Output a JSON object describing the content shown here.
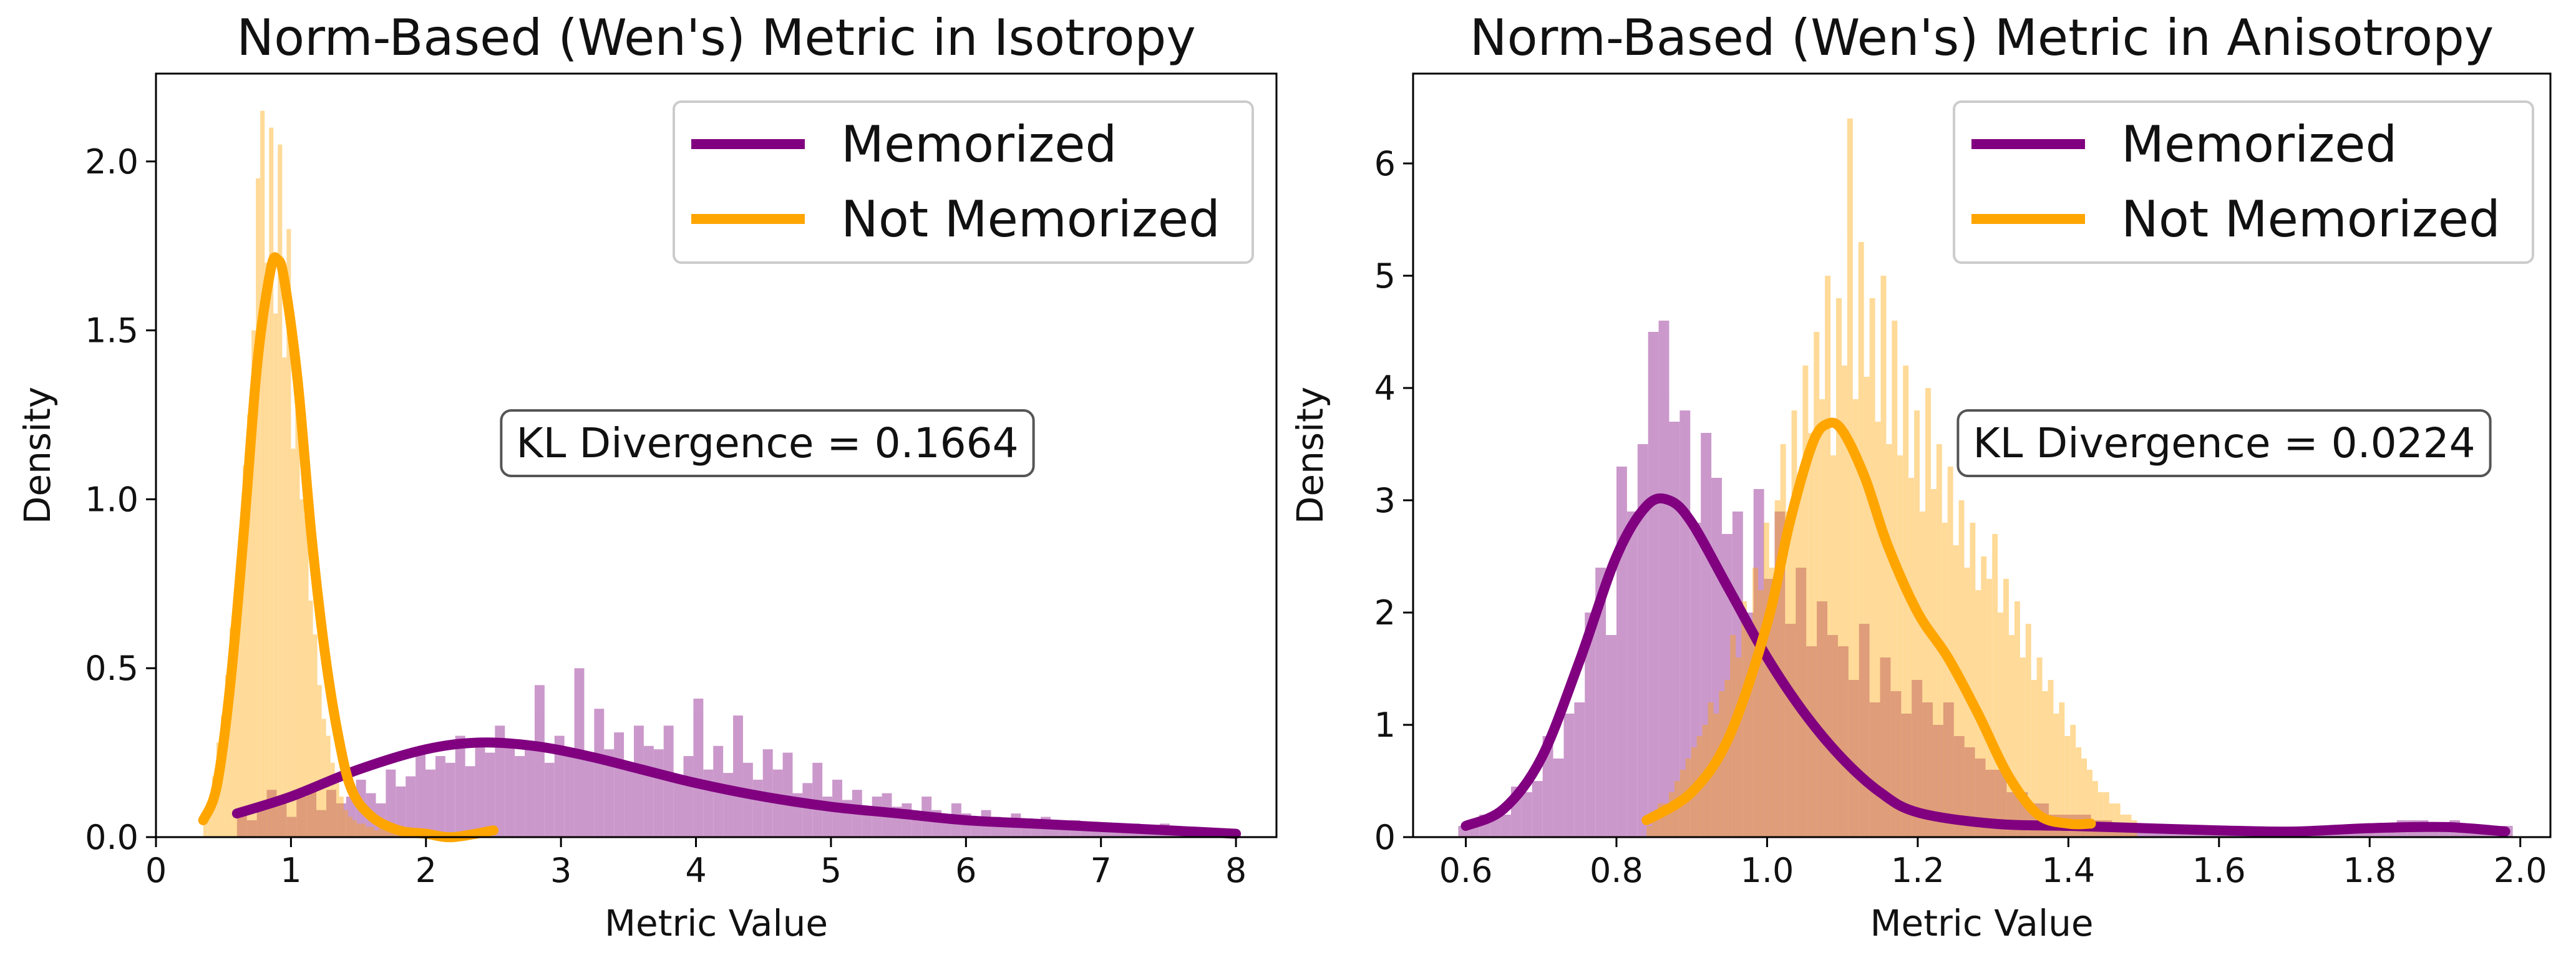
{
  "chart_data": [
    {
      "type": "histogram+kde",
      "title": "Norm-Based (Wen's) Metric in Isotropy",
      "xlabel": "Metric Value",
      "ylabel": "Density",
      "xlim": [
        0,
        8.3
      ],
      "ylim": [
        0,
        2.26
      ],
      "xticks": [
        0,
        1,
        2,
        3,
        4,
        5,
        6,
        7,
        8
      ],
      "xtick_labels": [
        "0",
        "1",
        "2",
        "3",
        "4",
        "5",
        "6",
        "7",
        "8"
      ],
      "yticks": [
        0.0,
        0.5,
        1.0,
        1.5,
        2.0
      ],
      "ytick_labels": [
        "0.0",
        "0.5",
        "1.0",
        "1.5",
        "2.0"
      ],
      "legend_position": "top-right",
      "annotation": "KL Divergence = 0.1664",
      "series": [
        {
          "name": "Memorized",
          "color": "#800080",
          "hist_start": 0.6,
          "bin_width": 0.0735,
          "hist": [
            0.07,
            0.05,
            0.08,
            0.14,
            0.1,
            0.06,
            0.12,
            0.15,
            0.08,
            0.14,
            0.1,
            0.12,
            0.17,
            0.13,
            0.1,
            0.2,
            0.15,
            0.18,
            0.26,
            0.2,
            0.24,
            0.22,
            0.3,
            0.21,
            0.27,
            0.25,
            0.33,
            0.29,
            0.24,
            0.27,
            0.45,
            0.22,
            0.3,
            0.25,
            0.5,
            0.23,
            0.38,
            0.26,
            0.31,
            0.2,
            0.33,
            0.27,
            0.26,
            0.33,
            0.18,
            0.24,
            0.41,
            0.2,
            0.27,
            0.19,
            0.36,
            0.22,
            0.17,
            0.26,
            0.2,
            0.25,
            0.13,
            0.16,
            0.22,
            0.12,
            0.17,
            0.11,
            0.14,
            0.08,
            0.12,
            0.13,
            0.09,
            0.1,
            0.07,
            0.12,
            0.08,
            0.06,
            0.1,
            0.07,
            0.06,
            0.08,
            0.06,
            0.05,
            0.07,
            0.04,
            0.05,
            0.06,
            0.04,
            0.03,
            0.05,
            0.04,
            0.03,
            0.04,
            0.03,
            0.03,
            0.04,
            0.02,
            0.03,
            0.04,
            0.02,
            0.02,
            0.03,
            0.02,
            0.02,
            0.02
          ],
          "kde_x": [
            0.6,
            1.0,
            1.5,
            2.0,
            2.4,
            2.8,
            3.2,
            3.6,
            4.0,
            4.5,
            5.0,
            5.5,
            6.0,
            6.5,
            7.0,
            7.5,
            8.0
          ],
          "kde_y": [
            0.07,
            0.12,
            0.2,
            0.26,
            0.28,
            0.27,
            0.24,
            0.2,
            0.16,
            0.12,
            0.09,
            0.07,
            0.05,
            0.04,
            0.03,
            0.02,
            0.01
          ]
        },
        {
          "name": "Not Memorized",
          "color": "#FFA500",
          "hist_start": 0.35,
          "bin_width": 0.0325,
          "hist": [
            0.05,
            0.1,
            0.18,
            0.28,
            0.36,
            0.48,
            0.62,
            0.7,
            0.78,
            1.1,
            1.25,
            1.5,
            1.95,
            2.15,
            1.7,
            2.1,
            1.55,
            2.05,
            1.42,
            1.8,
            1.15,
            1.35,
            1.0,
            0.95,
            0.7,
            0.6,
            0.45,
            0.35,
            0.3,
            0.22,
            0.16,
            0.12,
            0.08,
            0.06,
            0.05,
            0.04,
            0.04,
            0.03,
            0.03,
            0.02,
            0.03,
            0.02,
            0.02,
            0.02,
            0.02,
            0.01,
            0.02,
            0.01,
            0.02,
            0.01,
            0.01,
            0.01,
            0.01,
            0.01,
            0.01,
            0.01,
            0.01,
            0.01,
            0.01,
            0.01,
            0.01,
            0.01,
            0.01,
            0.01
          ],
          "kde_x": [
            0.35,
            0.45,
            0.55,
            0.65,
            0.75,
            0.85,
            0.9,
            0.95,
            1.05,
            1.15,
            1.25,
            1.35,
            1.45,
            1.6,
            1.8,
            2.0,
            2.2,
            2.5
          ],
          "kde_y": [
            0.05,
            0.15,
            0.45,
            0.9,
            1.4,
            1.68,
            1.71,
            1.65,
            1.35,
            0.9,
            0.55,
            0.3,
            0.14,
            0.06,
            0.02,
            0.01,
            0.0,
            0.02
          ]
        }
      ]
    },
    {
      "type": "histogram+kde",
      "title": "Norm-Based (Wen's) Metric in Anisotropy",
      "xlabel": "Metric Value",
      "ylabel": "Density",
      "xlim": [
        0.53,
        2.04
      ],
      "ylim": [
        0,
        6.8
      ],
      "xticks": [
        0.6,
        0.8,
        1.0,
        1.2,
        1.4,
        1.6,
        1.8,
        2.0
      ],
      "xtick_labels": [
        "0.6",
        "0.8",
        "1.0",
        "1.2",
        "1.4",
        "1.6",
        "1.8",
        "2.0"
      ],
      "yticks": [
        0,
        1,
        2,
        3,
        4,
        5,
        6
      ],
      "ytick_labels": [
        "0",
        "1",
        "2",
        "3",
        "4",
        "5",
        "6"
      ],
      "legend_position": "top-right",
      "annotation": "KL Divergence = 0.0224",
      "series": [
        {
          "name": "Memorized",
          "color": "#800080",
          "hist_start": 0.59,
          "bin_width": 0.014,
          "hist": [
            0.1,
            0.1,
            0.2,
            0.2,
            0.2,
            0.45,
            0.4,
            0.5,
            0.9,
            0.7,
            1.1,
            1.2,
            2.0,
            2.4,
            1.8,
            3.3,
            2.9,
            3.5,
            4.5,
            4.6,
            3.7,
            3.8,
            2.8,
            3.6,
            3.2,
            2.7,
            2.9,
            2.0,
            3.1,
            2.3,
            2.9,
            1.9,
            2.4,
            1.7,
            2.1,
            1.8,
            1.7,
            1.4,
            1.9,
            1.2,
            1.6,
            1.3,
            1.1,
            1.4,
            1.2,
            1.0,
            1.2,
            0.9,
            0.8,
            0.7,
            0.6,
            0.6,
            0.4,
            0.4,
            0.3,
            0.3,
            0.2,
            0.2,
            0.2,
            0.2,
            0.15,
            0.15,
            0.12,
            0.12,
            0.1,
            0.1,
            0.1,
            0.1,
            0.08,
            0.08,
            0.1,
            0.08,
            0.06,
            0.06,
            0.06,
            0.06,
            0.05,
            0.05,
            0.05,
            0.05,
            0.05,
            0.05,
            0.05,
            0.05,
            0.06,
            0.06,
            0.08,
            0.1,
            0.12,
            0.15,
            0.15,
            0.15,
            0.12,
            0.12,
            0.15,
            0.12,
            0.1,
            0.1,
            0.1,
            0.1
          ],
          "kde_x": [
            0.6,
            0.65,
            0.7,
            0.75,
            0.8,
            0.84,
            0.87,
            0.9,
            0.95,
            1.0,
            1.05,
            1.1,
            1.15,
            1.2,
            1.3,
            1.4,
            1.5,
            1.6,
            1.7,
            1.8,
            1.9,
            1.98
          ],
          "kde_y": [
            0.1,
            0.25,
            0.7,
            1.55,
            2.5,
            2.95,
            3.0,
            2.8,
            2.2,
            1.6,
            1.1,
            0.7,
            0.4,
            0.22,
            0.12,
            0.1,
            0.08,
            0.06,
            0.05,
            0.08,
            0.09,
            0.05
          ]
        },
        {
          "name": "Not Memorized",
          "color": "#FFA500",
          "hist_start": 0.84,
          "bin_width": 0.0074,
          "hist": [
            0.1,
            0.2,
            0.3,
            0.3,
            0.4,
            0.5,
            0.6,
            0.7,
            0.8,
            0.9,
            1.0,
            1.2,
            1.1,
            1.3,
            1.4,
            1.8,
            1.6,
            2.1,
            1.9,
            2.4,
            2.2,
            2.8,
            2.4,
            3.0,
            3.5,
            2.9,
            3.8,
            3.2,
            4.2,
            3.6,
            4.5,
            3.9,
            5.0,
            3.4,
            4.8,
            4.2,
            6.4,
            3.9,
            5.3,
            4.1,
            4.8,
            3.7,
            5.0,
            3.5,
            4.6,
            3.4,
            4.2,
            3.2,
            3.8,
            2.9,
            4.0,
            3.1,
            3.5,
            2.8,
            3.3,
            2.6,
            3.0,
            2.4,
            2.8,
            2.2,
            2.5,
            2.3,
            2.7,
            2.0,
            2.3,
            1.8,
            2.1,
            1.6,
            1.9,
            1.4,
            1.6,
            1.3,
            1.4,
            1.1,
            1.2,
            0.9,
            1.0,
            0.8,
            0.7,
            0.6,
            0.5,
            0.4,
            0.4,
            0.3,
            0.3,
            0.2,
            0.2,
            0.15
          ],
          "kde_x": [
            0.84,
            0.9,
            0.95,
            1.0,
            1.03,
            1.06,
            1.08,
            1.1,
            1.13,
            1.16,
            1.2,
            1.24,
            1.28,
            1.32,
            1.36,
            1.4,
            1.43
          ],
          "kde_y": [
            0.15,
            0.4,
            0.9,
            1.9,
            2.8,
            3.5,
            3.68,
            3.62,
            3.2,
            2.6,
            2.0,
            1.6,
            1.1,
            0.55,
            0.2,
            0.12,
            0.12
          ]
        }
      ]
    }
  ]
}
